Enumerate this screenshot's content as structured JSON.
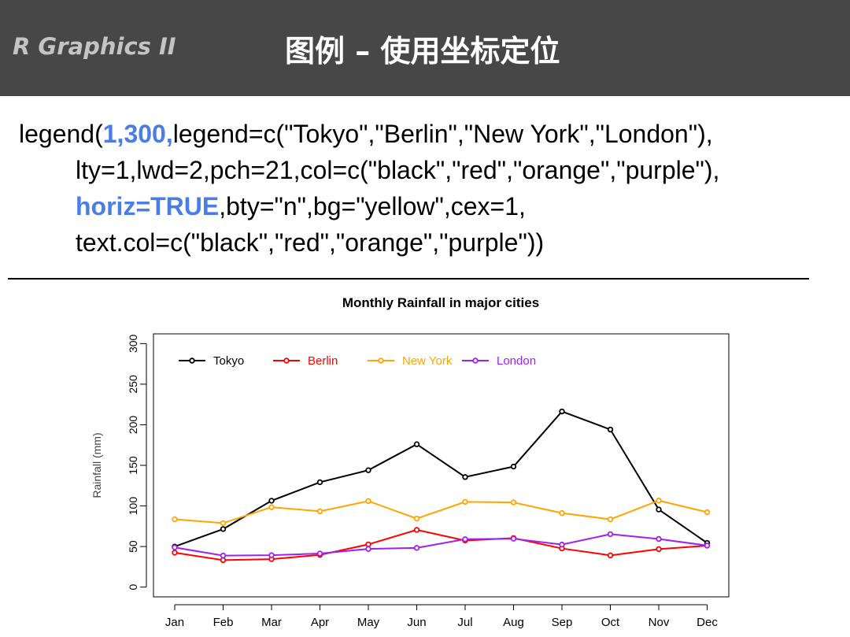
{
  "header": {
    "brand": "R Graphics II",
    "title": "图例 – 使用坐标定位"
  },
  "code": {
    "line1": {
      "a": "legend(",
      "b": "1,300,",
      "c": "legend=c(\"Tokyo\",\"Berlin\",\"New York\",\"London\"),"
    },
    "line2": "lty=1,lwd=2,pch=21,col=c(\"black\",\"red\",\"orange\",\"purple\"),",
    "line3": {
      "a": "horiz=TRUE",
      "b": ",bty=\"n\",bg=\"yellow\",cex=1,"
    },
    "line4": "text.col=c(\"black\",\"red\",\"orange\",\"purple\"))"
  },
  "chart_data": {
    "type": "line",
    "title": "Monthly Rainfall in major cities",
    "xlabel": "",
    "ylabel": "Rainfall (mm)",
    "categories": [
      "Jan",
      "Feb",
      "Mar",
      "Apr",
      "May",
      "Jun",
      "Jul",
      "Aug",
      "Sep",
      "Oct",
      "Nov",
      "Dec"
    ],
    "yticks": [
      0,
      50,
      100,
      150,
      200,
      250,
      300
    ],
    "ylim": [
      -12,
      312
    ],
    "grid": false,
    "legend": {
      "position": "top-left",
      "horizontal": true
    },
    "series": [
      {
        "name": "Tokyo",
        "color": "#000000",
        "values": [
          49.9,
          71.5,
          106.4,
          129.2,
          144.0,
          176.0,
          135.6,
          148.5,
          216.4,
          194.1,
          95.6,
          54.4
        ]
      },
      {
        "name": "Berlin",
        "color": "#ff0000",
        "values": [
          42.4,
          33.2,
          34.5,
          39.7,
          52.6,
          70.5,
          57.4,
          60.4,
          47.6,
          39.1,
          46.8,
          51.1
        ]
      },
      {
        "name": "New York",
        "color": "#ffa500",
        "values": [
          83.6,
          78.8,
          98.5,
          93.4,
          106.0,
          84.5,
          105.0,
          104.3,
          91.2,
          83.5,
          106.6,
          92.3
        ]
      },
      {
        "name": "London",
        "color": "#a020f0",
        "values": [
          48.9,
          38.8,
          39.3,
          41.4,
          47.0,
          48.3,
          59.0,
          59.6,
          52.4,
          65.2,
          59.3,
          51.2
        ]
      }
    ]
  }
}
